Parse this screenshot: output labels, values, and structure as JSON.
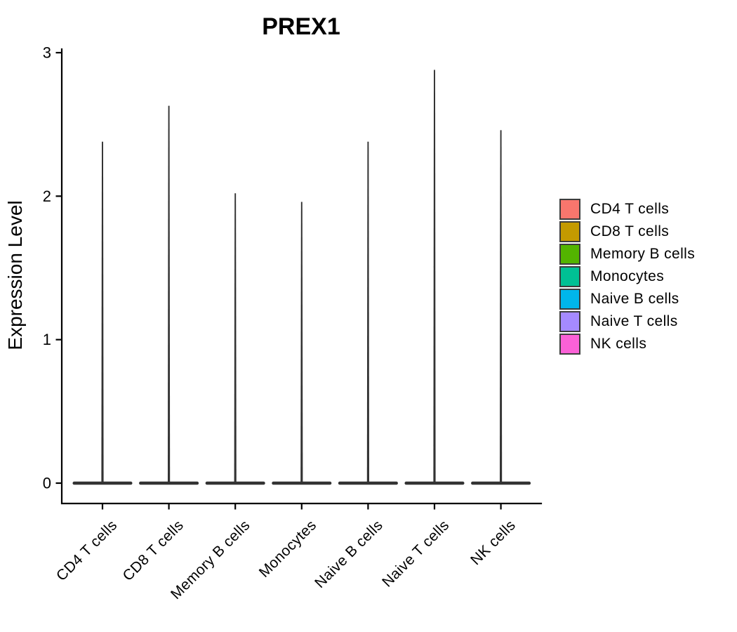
{
  "figure": {
    "background": "#FFFFFF",
    "axis_color": "#000000",
    "violin_outline_color": "#333333",
    "legend_swatch_border_color": "#3C3C3C"
  },
  "chart_data": {
    "type": "violin",
    "title": "PREX1",
    "ylabel": "Expression Level",
    "xlabel": "",
    "categories": [
      "CD4 T cells",
      "CD8 T cells",
      "Memory B cells",
      "Monocytes",
      "Naive B cells",
      "Naive T cells",
      "NK cells"
    ],
    "series": [
      {
        "label": "CD4 T cells",
        "color": "#F8766D",
        "bulk_value": 0,
        "max_expression": 2.38
      },
      {
        "label": "CD8 T cells",
        "color": "#C49A00",
        "bulk_value": 0,
        "max_expression": 2.63
      },
      {
        "label": "Memory B cells",
        "color": "#53B400",
        "bulk_value": 0,
        "max_expression": 2.02
      },
      {
        "label": "Monocytes",
        "color": "#00C094",
        "bulk_value": 0,
        "max_expression": 1.96
      },
      {
        "label": "Naive B cells",
        "color": "#00B6EB",
        "bulk_value": 0,
        "max_expression": 2.38
      },
      {
        "label": "Naive T cells",
        "color": "#A58AFF",
        "bulk_value": 0,
        "max_expression": 2.88
      },
      {
        "label": "NK cells",
        "color": "#FB61D7",
        "bulk_value": 0,
        "max_expression": 2.46
      }
    ],
    "yticks": [
      0,
      1,
      2,
      3
    ],
    "ylim": [
      0,
      3
    ],
    "grid": "off",
    "legend_position": "right"
  }
}
